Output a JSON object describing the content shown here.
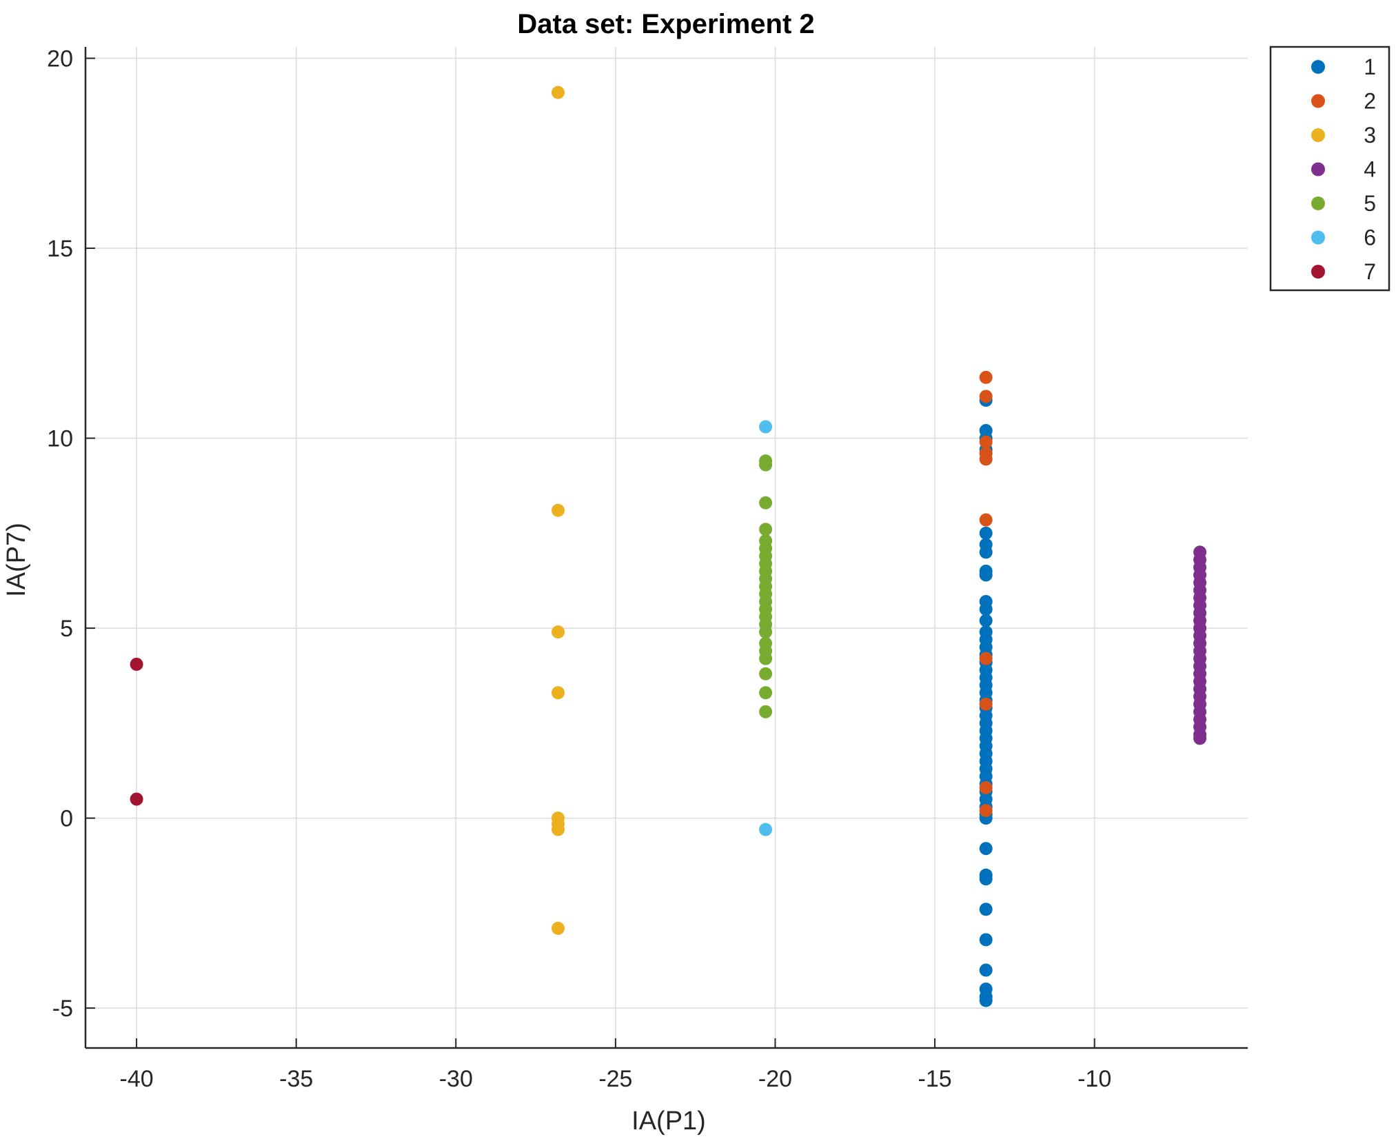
{
  "chart_data": {
    "type": "scatter",
    "title": "Data set: Experiment 2",
    "xlabel": "IA(P1)",
    "ylabel": "IA(P7)",
    "xlim": [
      -41.6,
      -5.2
    ],
    "ylim": [
      -6.05,
      20.3
    ],
    "xticks": [
      -40,
      -35,
      -30,
      -25,
      -20,
      -15,
      -10
    ],
    "yticks": [
      -5,
      0,
      5,
      10,
      15,
      20
    ],
    "xtick_labels": [
      "-40",
      "-35",
      "-30",
      "-25",
      "-20",
      "-15",
      "-10"
    ],
    "ytick_labels": [
      "-5",
      "0",
      "5",
      "10",
      "15",
      "20"
    ],
    "grid": true,
    "legend_position": "outside-top-right",
    "series": [
      {
        "name": "1",
        "color": "#0072BD",
        "points": [
          [
            -13.4,
            11.0
          ],
          [
            -13.4,
            10.2
          ],
          [
            -13.4,
            10.0
          ],
          [
            -13.4,
            9.7
          ],
          [
            -13.4,
            7.5
          ],
          [
            -13.4,
            7.2
          ],
          [
            -13.4,
            7.0
          ],
          [
            -13.4,
            6.5
          ],
          [
            -13.4,
            6.4
          ],
          [
            -13.4,
            5.7
          ],
          [
            -13.4,
            5.5
          ],
          [
            -13.4,
            5.2
          ],
          [
            -13.4,
            4.9
          ],
          [
            -13.4,
            4.7
          ],
          [
            -13.4,
            4.5
          ],
          [
            -13.4,
            4.3
          ],
          [
            -13.4,
            4.1
          ],
          [
            -13.4,
            3.9
          ],
          [
            -13.4,
            3.7
          ],
          [
            -13.4,
            3.5
          ],
          [
            -13.4,
            3.3
          ],
          [
            -13.4,
            3.1
          ],
          [
            -13.4,
            2.9
          ],
          [
            -13.4,
            2.7
          ],
          [
            -13.4,
            2.5
          ],
          [
            -13.4,
            2.3
          ],
          [
            -13.4,
            2.1
          ],
          [
            -13.4,
            1.9
          ],
          [
            -13.4,
            1.7
          ],
          [
            -13.4,
            1.5
          ],
          [
            -13.4,
            1.3
          ],
          [
            -13.4,
            1.1
          ],
          [
            -13.4,
            0.9
          ],
          [
            -13.4,
            0.7
          ],
          [
            -13.4,
            0.5
          ],
          [
            -13.4,
            0.3
          ],
          [
            -13.4,
            0.1
          ],
          [
            -13.4,
            0.0
          ],
          [
            -13.4,
            -0.8
          ],
          [
            -13.4,
            -1.5
          ],
          [
            -13.4,
            -1.6
          ],
          [
            -13.4,
            -2.4
          ],
          [
            -13.4,
            -3.2
          ],
          [
            -13.4,
            -4.0
          ],
          [
            -13.4,
            -4.5
          ],
          [
            -13.4,
            -4.7
          ],
          [
            -13.4,
            -4.8
          ]
        ]
      },
      {
        "name": "2",
        "color": "#D95319",
        "points": [
          [
            -13.4,
            11.6
          ],
          [
            -13.4,
            11.1
          ],
          [
            -13.4,
            9.9
          ],
          [
            -13.4,
            9.6
          ],
          [
            -13.4,
            9.45
          ],
          [
            -13.4,
            7.85
          ],
          [
            -13.4,
            4.2
          ],
          [
            -13.4,
            3.0
          ],
          [
            -13.4,
            0.8
          ],
          [
            -13.4,
            0.2
          ]
        ]
      },
      {
        "name": "3",
        "color": "#EDB120",
        "points": [
          [
            -26.8,
            19.1
          ],
          [
            -26.8,
            8.1
          ],
          [
            -26.8,
            4.9
          ],
          [
            -26.8,
            3.3
          ],
          [
            -26.8,
            0.0
          ],
          [
            -26.8,
            -0.15
          ],
          [
            -26.8,
            -0.3
          ],
          [
            -26.8,
            -2.9
          ]
        ]
      },
      {
        "name": "4",
        "color": "#7E2F8E",
        "points": [
          [
            -6.7,
            7.0
          ],
          [
            -6.7,
            6.8
          ],
          [
            -6.7,
            6.6
          ],
          [
            -6.7,
            6.4
          ],
          [
            -6.7,
            6.2
          ],
          [
            -6.7,
            6.0
          ],
          [
            -6.7,
            5.8
          ],
          [
            -6.7,
            5.6
          ],
          [
            -6.7,
            5.4
          ],
          [
            -6.7,
            5.2
          ],
          [
            -6.7,
            5.0
          ],
          [
            -6.7,
            4.8
          ],
          [
            -6.7,
            4.6
          ],
          [
            -6.7,
            4.4
          ],
          [
            -6.7,
            4.2
          ],
          [
            -6.7,
            4.0
          ],
          [
            -6.7,
            3.8
          ],
          [
            -6.7,
            3.6
          ],
          [
            -6.7,
            3.4
          ],
          [
            -6.7,
            3.2
          ],
          [
            -6.7,
            3.0
          ],
          [
            -6.7,
            2.8
          ],
          [
            -6.7,
            2.6
          ],
          [
            -6.7,
            2.4
          ],
          [
            -6.7,
            2.2
          ],
          [
            -6.7,
            2.1
          ]
        ]
      },
      {
        "name": "5",
        "color": "#77AC30",
        "points": [
          [
            -20.3,
            9.4
          ],
          [
            -20.3,
            9.3
          ],
          [
            -20.3,
            8.3
          ],
          [
            -20.3,
            7.6
          ],
          [
            -20.3,
            7.3
          ],
          [
            -20.3,
            7.1
          ],
          [
            -20.3,
            6.9
          ],
          [
            -20.3,
            6.7
          ],
          [
            -20.3,
            6.5
          ],
          [
            -20.3,
            6.3
          ],
          [
            -20.3,
            6.1
          ],
          [
            -20.3,
            5.9
          ],
          [
            -20.3,
            5.7
          ],
          [
            -20.3,
            5.5
          ],
          [
            -20.3,
            5.3
          ],
          [
            -20.3,
            5.1
          ],
          [
            -20.3,
            4.9
          ],
          [
            -20.3,
            4.6
          ],
          [
            -20.3,
            4.4
          ],
          [
            -20.3,
            4.2
          ],
          [
            -20.3,
            3.8
          ],
          [
            -20.3,
            3.3
          ],
          [
            -20.3,
            2.8
          ]
        ]
      },
      {
        "name": "6",
        "color": "#4DBEEE",
        "points": [
          [
            -20.3,
            10.3
          ],
          [
            -20.3,
            -0.3
          ]
        ]
      },
      {
        "name": "7",
        "color": "#A2142F",
        "points": [
          [
            -40.0,
            4.05
          ],
          [
            -40.0,
            0.5
          ]
        ]
      }
    ]
  }
}
